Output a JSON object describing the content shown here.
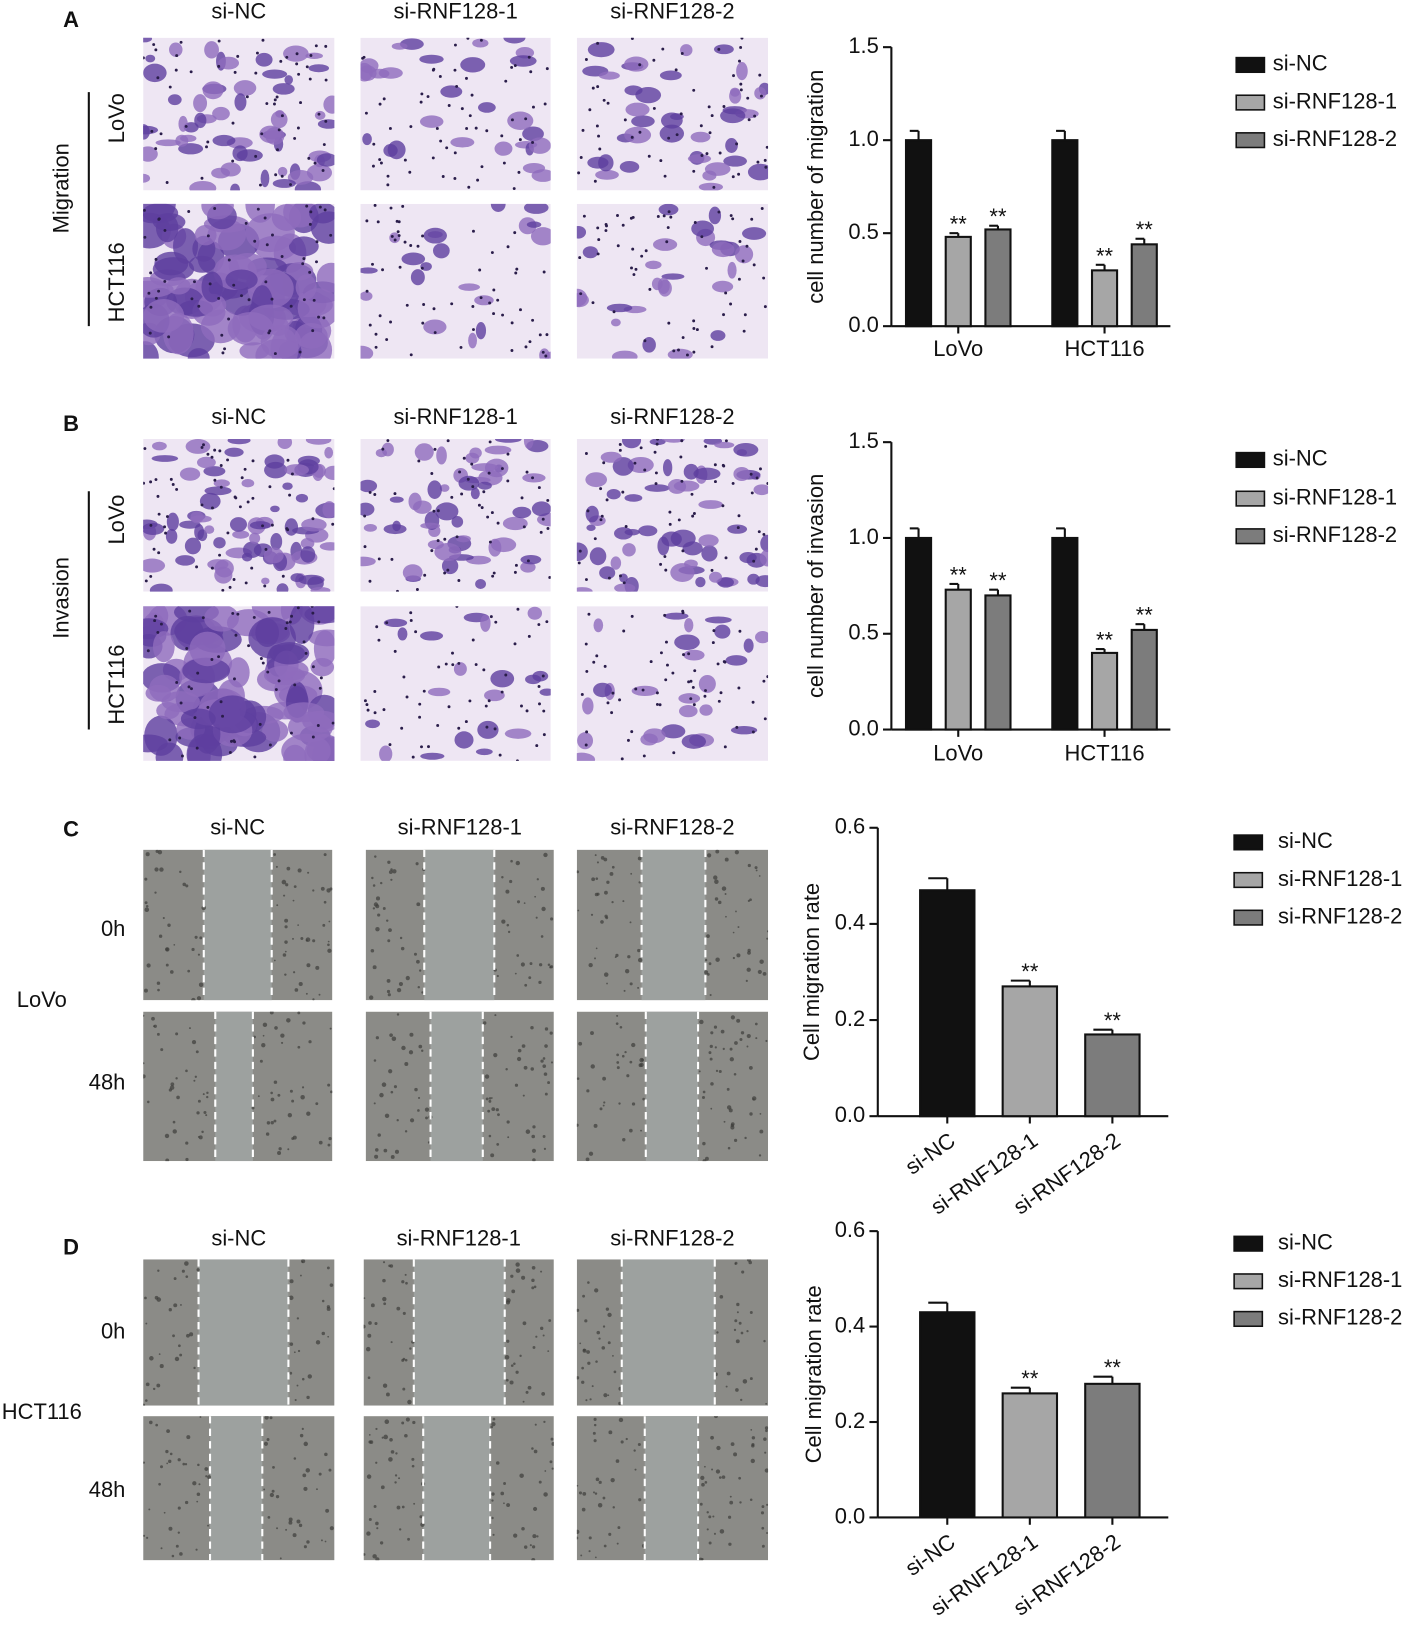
{
  "panels": [
    {
      "letter": "A",
      "columns": [
        "si-NC",
        "si-RNF128-1",
        "si-RNF128-2"
      ],
      "group_label": "Migration",
      "rows": [
        "LoVo",
        "HCT116"
      ]
    },
    {
      "letter": "B",
      "columns": [
        "si-NC",
        "si-RNF128-1",
        "si-RNF128-2"
      ],
      "group_label": "Invasion",
      "rows": [
        "LoVo",
        "HCT116"
      ]
    },
    {
      "letter": "C",
      "columns": [
        "si-NC",
        "si-RNF128-1",
        "si-RNF128-2"
      ],
      "cell_line": "LoVo",
      "rows": [
        "0h",
        "48h"
      ]
    },
    {
      "letter": "D",
      "columns": [
        "si-NC",
        "si-RNF128-1",
        "si-RNF128-2"
      ],
      "cell_line": "HCT116",
      "rows": [
        "0h",
        "48h"
      ]
    }
  ],
  "chart_data": [
    {
      "type": "bar",
      "ylabel": "cell number of migration",
      "categories": [
        "LoVo",
        "HCT116"
      ],
      "series": [
        {
          "name": "si-NC",
          "color": "#111111",
          "values": [
            1.0,
            1.0
          ],
          "errors": [
            0.05,
            0.05
          ],
          "significance": [
            null,
            null
          ]
        },
        {
          "name": "si-RNF128-1",
          "color": "#a6a6a6",
          "values": [
            0.48,
            0.3
          ],
          "errors": [
            0.02,
            0.03
          ],
          "significance": [
            "**",
            "**"
          ]
        },
        {
          "name": "si-RNF128-2",
          "color": "#7c7c7c",
          "values": [
            0.52,
            0.44
          ],
          "errors": [
            0.02,
            0.03
          ],
          "significance": [
            "**",
            "**"
          ]
        }
      ],
      "ylim": [
        0,
        1.5
      ],
      "yticks": [
        {
          "value": 0,
          "label": "0.0"
        },
        0.5,
        {
          "value": 1,
          "label": "1.0"
        },
        1.5
      ]
    },
    {
      "type": "bar",
      "ylabel": "cell number of invasion",
      "categories": [
        "LoVo",
        "HCT116"
      ],
      "series": [
        {
          "name": "si-NC",
          "color": "#111111",
          "values": [
            1.0,
            1.0
          ],
          "errors": [
            0.05,
            0.05
          ],
          "significance": [
            null,
            null
          ]
        },
        {
          "name": "si-RNF128-1",
          "color": "#a6a6a6",
          "values": [
            0.73,
            0.4
          ],
          "errors": [
            0.03,
            0.02
          ],
          "significance": [
            "**",
            "**"
          ]
        },
        {
          "name": "si-RNF128-2",
          "color": "#7c7c7c",
          "values": [
            0.7,
            0.52
          ],
          "errors": [
            0.03,
            0.03
          ],
          "significance": [
            "**",
            "**"
          ]
        }
      ],
      "ylim": [
        0,
        1.5
      ],
      "yticks": [
        {
          "value": 0,
          "label": "0.0"
        },
        0.5,
        {
          "value": 1,
          "label": "1.0"
        },
        1.5
      ]
    },
    {
      "type": "bar",
      "ylabel": "Cell migration rate",
      "categories": [
        "si-NC",
        "si-RNF128-1",
        "si-RNF128-2"
      ],
      "values": [
        0.47,
        0.27,
        0.17
      ],
      "errors": [
        0.025,
        0.012,
        0.01
      ],
      "significance": [
        null,
        "**",
        "**"
      ],
      "colors": [
        "#111111",
        "#a6a6a6",
        "#7c7c7c"
      ],
      "ylim": [
        0,
        0.6
      ],
      "yticks": [
        {
          "value": 0,
          "label": "0.0"
        },
        0.2,
        0.4,
        0.6
      ]
    },
    {
      "type": "bar",
      "ylabel": "Cell migration rate",
      "categories": [
        "si-NC",
        "si-RNF128-1",
        "si-RNF128-2"
      ],
      "values": [
        0.43,
        0.26,
        0.28
      ],
      "errors": [
        0.02,
        0.012,
        0.015
      ],
      "significance": [
        null,
        "**",
        "**"
      ],
      "colors": [
        "#111111",
        "#a6a6a6",
        "#7c7c7c"
      ],
      "ylim": [
        0,
        0.6
      ],
      "yticks": [
        {
          "value": 0,
          "label": "0.0"
        },
        0.2,
        0.4,
        0.6
      ]
    }
  ]
}
